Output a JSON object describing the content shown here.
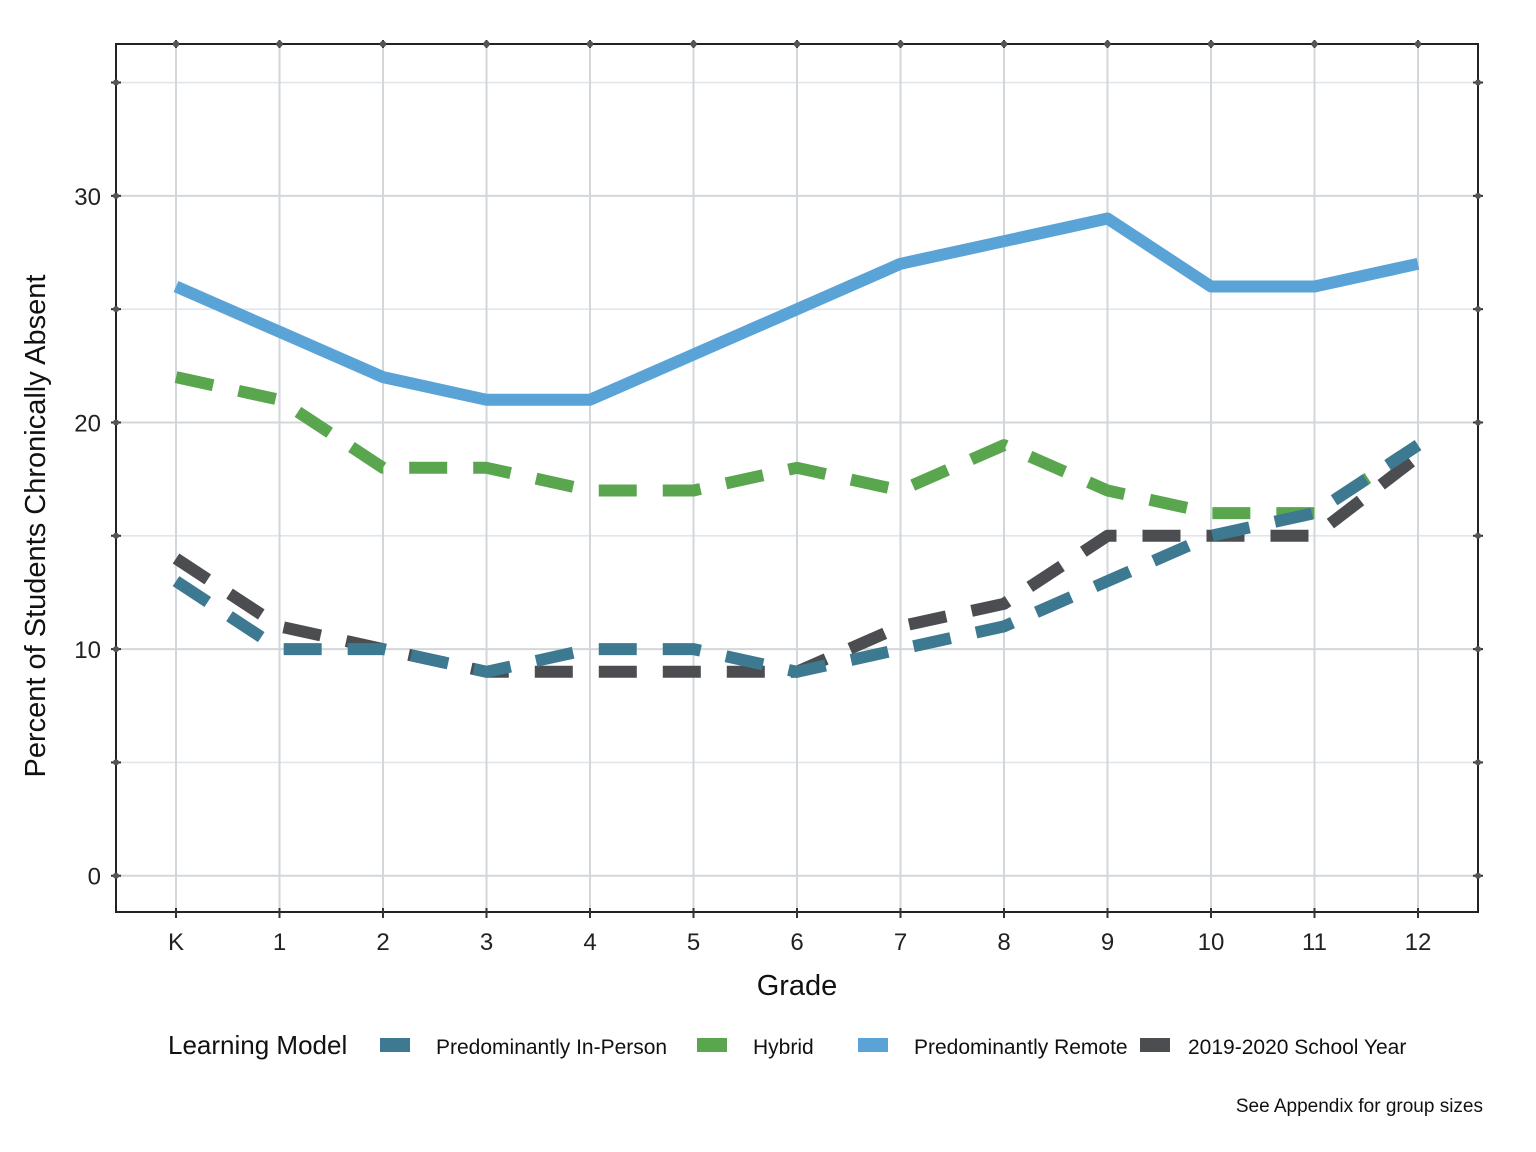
{
  "chart_data": {
    "type": "line",
    "title": "",
    "xlabel": "Grade",
    "ylabel": "Percent of Students Chronically Absent",
    "categories": [
      "K",
      "1",
      "2",
      "3",
      "4",
      "5",
      "6",
      "7",
      "8",
      "9",
      "10",
      "11",
      "12"
    ],
    "yticks": [
      "0",
      "10",
      "20",
      "30"
    ],
    "ylim": [
      -1.6,
      36.7
    ],
    "grid": true,
    "legend": {
      "title": "Learning Model",
      "placement": "bottom"
    },
    "series": [
      {
        "name": "Predominantly In-Person",
        "color": "#3d7991",
        "dash": "dashed",
        "values": [
          13,
          10,
          10,
          9,
          10,
          10,
          9,
          10,
          11,
          13,
          15,
          16,
          19
        ]
      },
      {
        "name": "Hybrid",
        "color": "#5aa64f",
        "dash": "dashed",
        "values": [
          22,
          21,
          18,
          18,
          17,
          17,
          18,
          17,
          19,
          17,
          16,
          16,
          19
        ]
      },
      {
        "name": "Predominantly Remote",
        "color": "#5aa3d7",
        "dash": "solid",
        "values": [
          26,
          24,
          22,
          21,
          21,
          23,
          25,
          27,
          28,
          29,
          26,
          26,
          27
        ]
      },
      {
        "name": "2019-2020 School Year",
        "color": "#4b4d51",
        "dash": "dashed",
        "values": [
          14,
          11,
          10,
          9,
          9,
          9,
          9,
          11,
          12,
          15,
          15,
          15,
          18.5
        ]
      }
    ],
    "note": "See Appendix for group sizes"
  }
}
